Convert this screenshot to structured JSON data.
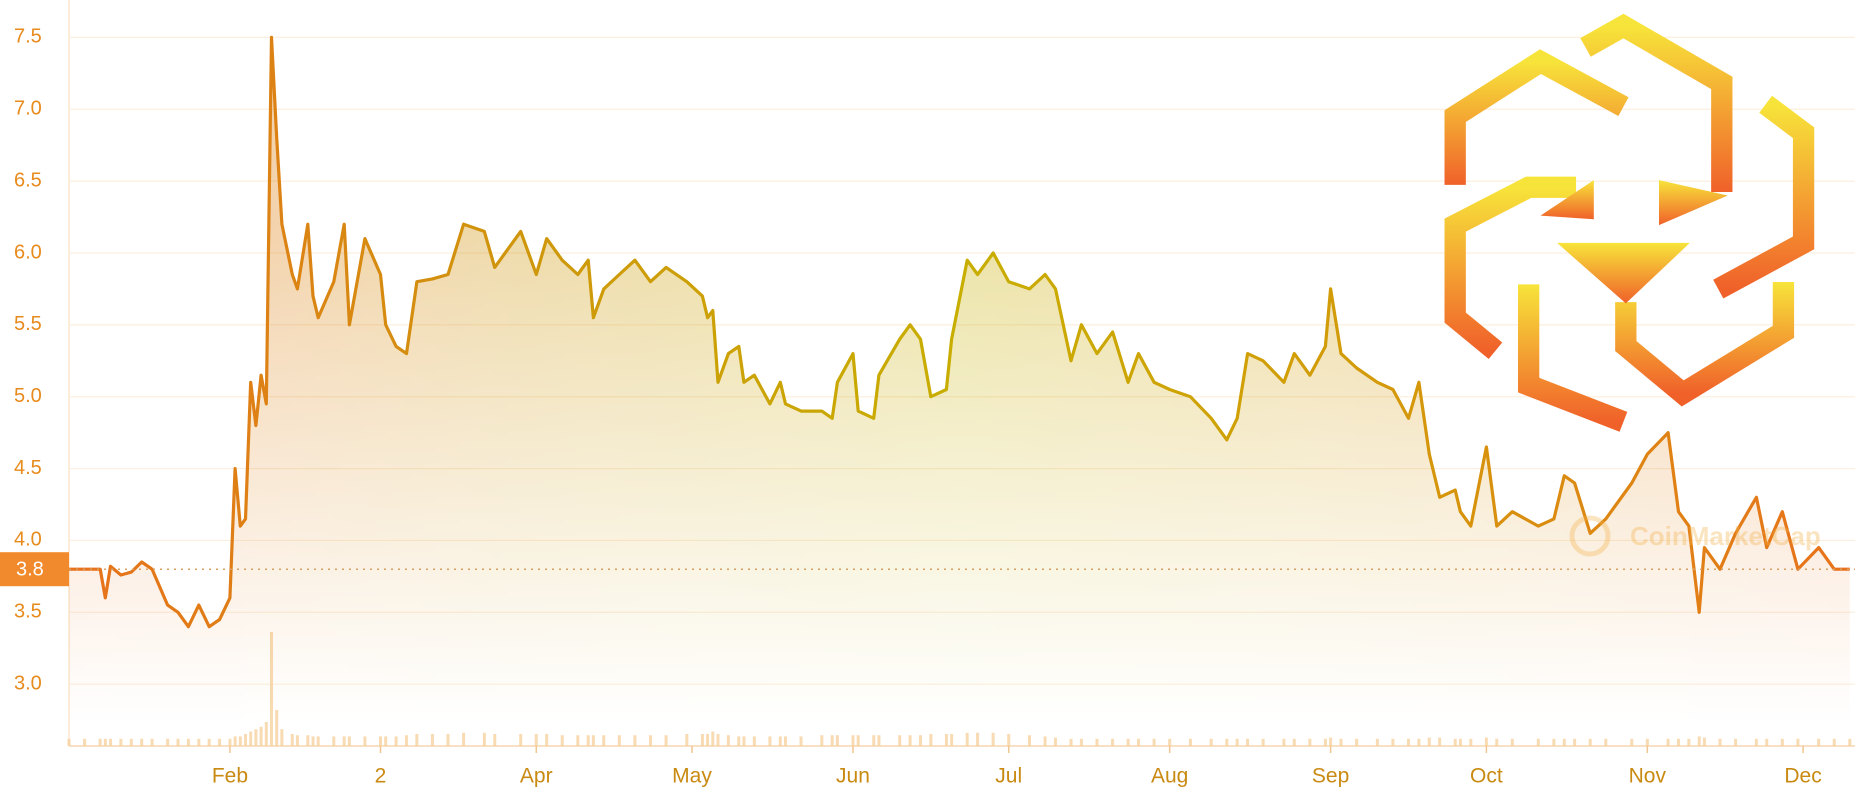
{
  "chart_data": {
    "type": "line",
    "x": [
      0,
      3,
      6,
      7,
      8,
      10,
      12,
      14,
      16,
      19,
      21,
      23,
      25,
      27,
      29,
      31,
      32,
      33,
      34,
      35,
      36,
      37,
      38,
      39,
      40,
      41,
      43,
      44,
      46,
      47,
      48,
      51,
      53,
      54,
      57,
      60,
      61,
      63,
      65,
      67,
      70,
      73,
      76,
      80,
      82,
      87,
      90,
      92,
      95,
      98,
      100,
      101,
      103,
      106,
      109,
      112,
      115,
      119,
      122,
      123,
      124,
      125,
      127,
      129,
      130,
      132,
      135,
      137,
      138,
      141,
      145,
      147,
      148,
      151,
      152,
      155,
      156,
      160,
      162,
      164,
      166,
      169,
      170,
      173,
      175,
      178,
      181,
      185,
      188,
      190,
      193,
      195,
      198,
      201,
      204,
      206,
      209,
      212,
      216,
      220,
      223,
      225,
      227,
      230,
      234,
      236,
      239,
      242,
      243,
      245,
      248,
      252,
      255,
      258,
      260,
      262,
      264,
      267,
      268,
      270,
      273,
      275,
      278,
      283,
      286,
      288,
      290,
      293,
      296,
      301,
      304,
      308,
      310,
      312,
      314,
      315,
      318,
      321,
      325,
      327,
      330,
      333,
      337,
      340,
      343
    ],
    "values": [
      3.8,
      3.8,
      3.8,
      3.6,
      3.82,
      3.76,
      3.78,
      3.85,
      3.8,
      3.55,
      3.5,
      3.4,
      3.55,
      3.4,
      3.45,
      3.6,
      4.5,
      4.1,
      4.15,
      5.1,
      4.8,
      5.15,
      4.95,
      7.5,
      6.8,
      6.2,
      5.85,
      5.75,
      6.2,
      5.7,
      5.55,
      5.8,
      6.2,
      5.5,
      6.1,
      5.85,
      5.5,
      5.35,
      5.3,
      5.8,
      5.82,
      5.85,
      6.2,
      6.15,
      5.9,
      6.15,
      5.85,
      6.1,
      5.95,
      5.85,
      5.95,
      5.55,
      5.75,
      5.85,
      5.95,
      5.8,
      5.9,
      5.8,
      5.7,
      5.55,
      5.6,
      5.1,
      5.3,
      5.35,
      5.1,
      5.15,
      4.95,
      5.1,
      4.95,
      4.9,
      4.9,
      4.85,
      5.1,
      5.3,
      4.9,
      4.85,
      5.15,
      5.4,
      5.5,
      5.4,
      5.0,
      5.05,
      5.4,
      5.95,
      5.85,
      6.0,
      5.8,
      5.75,
      5.85,
      5.75,
      5.25,
      5.5,
      5.3,
      5.45,
      5.1,
      5.3,
      5.1,
      5.05,
      5.0,
      4.85,
      4.7,
      4.85,
      5.3,
      5.25,
      5.1,
      5.3,
      5.15,
      5.35,
      5.75,
      5.3,
      5.2,
      5.1,
      5.05,
      4.85,
      5.1,
      4.6,
      4.3,
      4.35,
      4.2,
      4.1,
      4.65,
      4.1,
      4.2,
      4.1,
      4.15,
      4.45,
      4.4,
      4.05,
      4.15,
      4.4,
      4.6,
      4.75,
      4.2,
      4.1,
      3.5,
      3.95,
      3.8,
      4.05,
      4.3,
      3.95,
      4.2,
      3.8,
      3.95,
      3.8,
      3.8
    ],
    "volume": [
      6,
      6,
      6,
      6,
      6,
      6,
      6,
      6,
      6,
      6,
      6,
      6,
      6,
      6,
      6,
      6,
      8,
      8,
      10,
      12,
      14,
      16,
      20,
      95,
      30,
      14,
      10,
      9,
      9,
      8,
      8,
      8,
      8,
      8,
      8,
      8,
      8,
      8,
      9,
      10,
      10,
      10,
      11,
      11,
      10,
      10,
      10,
      10,
      9,
      9,
      9,
      9,
      9,
      9,
      9,
      9,
      9,
      10,
      10,
      10,
      12,
      10,
      9,
      8,
      8,
      8,
      8,
      8,
      8,
      8,
      9,
      9,
      9,
      9,
      9,
      9,
      9,
      9,
      9,
      9,
      10,
      10,
      10,
      11,
      11,
      11,
      10,
      9,
      8,
      7,
      6,
      6,
      6,
      6,
      6,
      6,
      6,
      6,
      6,
      6,
      6,
      6,
      6,
      6,
      6,
      6,
      6,
      6,
      7,
      6,
      6,
      6,
      6,
      6,
      6,
      7,
      7,
      6,
      6,
      6,
      7,
      6,
      6,
      6,
      6,
      6,
      6,
      6,
      6,
      6,
      6,
      6,
      6,
      6,
      8,
      7,
      6,
      6,
      6,
      6,
      6,
      6,
      6,
      6,
      6
    ],
    "xlim": [
      0,
      344
    ],
    "ylim": [
      2.57,
      7.76
    ],
    "xticks": [
      {
        "value": 31,
        "label": "Feb"
      },
      {
        "value": 60,
        "label": "2"
      },
      {
        "value": 90,
        "label": "Apr"
      },
      {
        "value": 120,
        "label": "May"
      },
      {
        "value": 151,
        "label": "Jun"
      },
      {
        "value": 181,
        "label": "Jul"
      },
      {
        "value": 212,
        "label": "Aug"
      },
      {
        "value": 243,
        "label": "Sep"
      },
      {
        "value": 273,
        "label": "Oct"
      },
      {
        "value": 304,
        "label": "Nov"
      },
      {
        "value": 334,
        "label": "Dec"
      }
    ],
    "yticks": [
      {
        "value": 3,
        "label": "3.0"
      },
      3.5,
      {
        "value": 4,
        "label": "4.0"
      },
      4.5,
      {
        "value": 5,
        "label": "5.0"
      },
      5.5,
      {
        "value": 6,
        "label": "6.0"
      },
      6.5,
      {
        "value": 7,
        "label": "7.0"
      },
      7.5
    ],
    "current_price": 3.8,
    "grid": true,
    "colors": [
      "#e8711c",
      "#cf960b",
      "#c8ae00",
      "#d4980a",
      "#e8711c"
    ],
    "watermark": "CoinMarketCap"
  }
}
